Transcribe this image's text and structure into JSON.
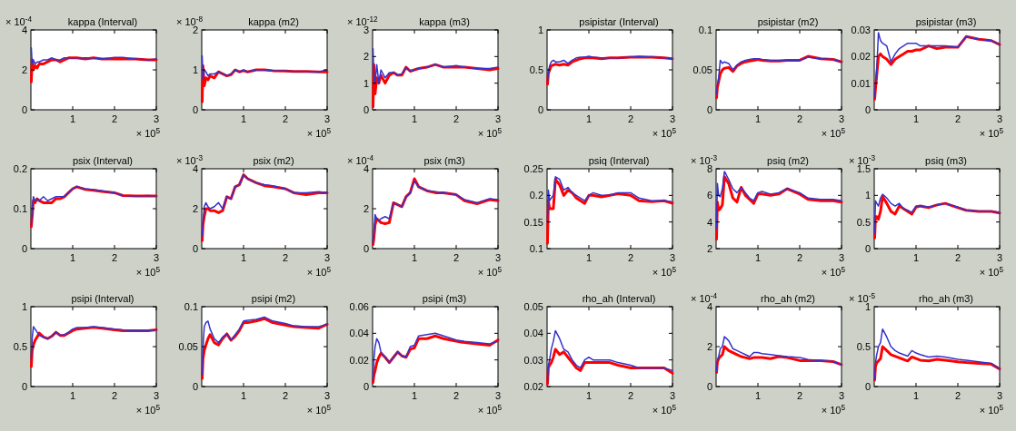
{
  "chart_data": [
    {
      "type": "line",
      "title": "kappa (Interval)",
      "annotations": [
        "× 10$^{-4}$"
      ],
      "xlabel": "× 10$^{5}$",
      "x": [
        0.01,
        0.03,
        0.06,
        0.1,
        0.15,
        0.2,
        0.3,
        0.4,
        0.5,
        0.6,
        0.7,
        0.8,
        0.9,
        1.0,
        1.1,
        1.3,
        1.5,
        1.7,
        2.0,
        2.2,
        2.5,
        2.8,
        3.0
      ],
      "xlim": [
        0,
        3
      ],
      "xticks": [
        1,
        2,
        3
      ],
      "ylim": [
        0,
        4
      ],
      "yticks": [
        0,
        2,
        4
      ],
      "series": [
        {
          "color": "#3333cc",
          "values": [
            3.1,
            2.3,
            2.5,
            2.3,
            2.4,
            2.4,
            2.5,
            2.5,
            2.6,
            2.5,
            2.5,
            2.6,
            2.6,
            2.6,
            2.6,
            2.6,
            2.6,
            2.55,
            2.62,
            2.62,
            2.55,
            2.5,
            2.55
          ]
        },
        {
          "color": "#ff0000",
          "values": [
            1.4,
            2.5,
            2.0,
            2.2,
            2.1,
            2.3,
            2.3,
            2.4,
            2.5,
            2.5,
            2.4,
            2.5,
            2.6,
            2.6,
            2.6,
            2.55,
            2.6,
            2.55,
            2.55,
            2.55,
            2.55,
            2.5,
            2.5
          ]
        }
      ]
    },
    {
      "type": "line",
      "title": "kappa (m2)",
      "annotations": [
        "× 10$^{-8}$"
      ],
      "xlabel": "× 10$^{5}$",
      "x": [
        0.01,
        0.03,
        0.06,
        0.1,
        0.15,
        0.2,
        0.3,
        0.4,
        0.5,
        0.6,
        0.7,
        0.8,
        0.9,
        1.0,
        1.1,
        1.3,
        1.5,
        1.7,
        2.0,
        2.2,
        2.5,
        2.8,
        3.0
      ],
      "xlim": [
        0,
        3
      ],
      "xticks": [
        1,
        2,
        3
      ],
      "ylim": [
        0,
        2
      ],
      "yticks": [
        0,
        1,
        2
      ],
      "series": [
        {
          "color": "#3333cc",
          "values": [
            1.35,
            0.75,
            1.0,
            0.95,
            0.85,
            0.9,
            0.9,
            0.95,
            0.9,
            0.85,
            0.9,
            1.0,
            0.95,
            1.0,
            0.95,
            1.0,
            1.0,
            0.98,
            0.97,
            0.96,
            0.96,
            0.95,
            1.0
          ]
        },
        {
          "color": "#ff0000",
          "values": [
            0.2,
            1.1,
            0.6,
            0.8,
            0.75,
            0.85,
            0.8,
            0.95,
            0.9,
            0.85,
            0.88,
            1.0,
            0.95,
            0.98,
            0.95,
            1.0,
            1.0,
            0.98,
            0.97,
            0.96,
            0.96,
            0.95,
            0.95
          ]
        }
      ]
    },
    {
      "type": "line",
      "title": "kappa (m3)",
      "annotations": [
        "× 10$^{-12}$"
      ],
      "xlabel": "× 10$^{5}$",
      "x": [
        0.01,
        0.03,
        0.06,
        0.1,
        0.15,
        0.2,
        0.3,
        0.4,
        0.5,
        0.6,
        0.7,
        0.8,
        0.9,
        1.0,
        1.1,
        1.3,
        1.5,
        1.7,
        2.0,
        2.2,
        2.5,
        2.8,
        3.0
      ],
      "xlim": [
        0,
        3
      ],
      "xticks": [
        1,
        2,
        3
      ],
      "ylim": [
        0,
        3
      ],
      "yticks": [
        0,
        1,
        2,
        3
      ],
      "series": [
        {
          "color": "#3333cc",
          "values": [
            2.3,
            1.3,
            1.0,
            1.7,
            1.0,
            1.5,
            1.2,
            1.4,
            1.4,
            1.3,
            1.35,
            1.6,
            1.45,
            1.5,
            1.55,
            1.6,
            1.7,
            1.6,
            1.66,
            1.6,
            1.55,
            1.55,
            1.6
          ]
        },
        {
          "color": "#ff0000",
          "values": [
            0.1,
            1.7,
            0.6,
            1.2,
            1.0,
            1.3,
            1.0,
            1.3,
            1.4,
            1.3,
            1.3,
            1.6,
            1.45,
            1.5,
            1.55,
            1.6,
            1.7,
            1.6,
            1.6,
            1.6,
            1.55,
            1.5,
            1.55
          ]
        }
      ]
    },
    {
      "type": "line",
      "title": "psipistar (Interval)",
      "xlabel": "× 10$^{5}$",
      "x": [
        0.01,
        0.03,
        0.06,
        0.1,
        0.15,
        0.2,
        0.3,
        0.4,
        0.5,
        0.6,
        0.7,
        0.8,
        0.9,
        1.0,
        1.1,
        1.3,
        1.5,
        1.7,
        2.0,
        2.2,
        2.5,
        2.8,
        3.0
      ],
      "xlim": [
        0,
        3
      ],
      "xticks": [
        1,
        2,
        3
      ],
      "ylim": [
        0,
        1
      ],
      "yticks": [
        0,
        0.5,
        1
      ],
      "series": [
        {
          "color": "#3333cc",
          "values": [
            0.35,
            0.48,
            0.55,
            0.6,
            0.62,
            0.6,
            0.6,
            0.62,
            0.58,
            0.62,
            0.65,
            0.66,
            0.66,
            0.67,
            0.66,
            0.65,
            0.65,
            0.65,
            0.66,
            0.67,
            0.66,
            0.65,
            0.64
          ]
        },
        {
          "color": "#ff0000",
          "values": [
            0.32,
            0.45,
            0.5,
            0.55,
            0.56,
            0.57,
            0.56,
            0.57,
            0.56,
            0.6,
            0.62,
            0.64,
            0.65,
            0.65,
            0.65,
            0.64,
            0.65,
            0.65,
            0.66,
            0.66,
            0.66,
            0.65,
            0.64
          ]
        }
      ]
    },
    {
      "type": "line",
      "title": "psipistar (m2)",
      "xlabel": "× 10$^{5}$",
      "x": [
        0.01,
        0.03,
        0.06,
        0.1,
        0.15,
        0.2,
        0.3,
        0.4,
        0.5,
        0.6,
        0.7,
        0.8,
        0.9,
        1.0,
        1.1,
        1.3,
        1.5,
        1.7,
        2.0,
        2.2,
        2.5,
        2.8,
        3.0
      ],
      "xlim": [
        0,
        3
      ],
      "xticks": [
        1,
        2,
        3
      ],
      "ylim": [
        0,
        0.1
      ],
      "yticks": [
        0,
        0.05,
        0.1
      ],
      "series": [
        {
          "color": "#3333cc",
          "values": [
            0.02,
            0.03,
            0.04,
            0.062,
            0.058,
            0.06,
            0.058,
            0.05,
            0.056,
            0.06,
            0.062,
            0.063,
            0.064,
            0.064,
            0.063,
            0.062,
            0.062,
            0.062,
            0.062,
            0.066,
            0.064,
            0.063,
            0.06
          ]
        },
        {
          "color": "#ff0000",
          "values": [
            0.015,
            0.028,
            0.035,
            0.045,
            0.05,
            0.052,
            0.053,
            0.048,
            0.055,
            0.058,
            0.06,
            0.061,
            0.062,
            0.063,
            0.062,
            0.061,
            0.061,
            0.062,
            0.062,
            0.067,
            0.064,
            0.063,
            0.06
          ]
        }
      ]
    },
    {
      "type": "line",
      "title": "psipistar (m3)",
      "xlabel": "× 10$^{5}$",
      "x": [
        0.01,
        0.03,
        0.06,
        0.1,
        0.15,
        0.2,
        0.3,
        0.4,
        0.5,
        0.6,
        0.7,
        0.8,
        0.9,
        1.0,
        1.1,
        1.3,
        1.5,
        1.7,
        2.0,
        2.2,
        2.5,
        2.8,
        3.0
      ],
      "xlim": [
        0,
        3
      ],
      "xticks": [
        1,
        2,
        3
      ],
      "ylim": [
        0,
        0.03
      ],
      "yticks": [
        0,
        0.01,
        0.02,
        0.03
      ],
      "series": [
        {
          "color": "#3333cc",
          "values": [
            0.005,
            0.01,
            0.015,
            0.029,
            0.026,
            0.025,
            0.024,
            0.018,
            0.021,
            0.023,
            0.024,
            0.025,
            0.025,
            0.025,
            0.024,
            0.024,
            0.024,
            0.024,
            0.0235,
            0.0275,
            0.0265,
            0.026,
            0.0245
          ]
        },
        {
          "color": "#ff0000",
          "values": [
            0.004,
            0.008,
            0.013,
            0.02,
            0.021,
            0.02,
            0.019,
            0.017,
            0.019,
            0.02,
            0.021,
            0.022,
            0.022,
            0.0225,
            0.0225,
            0.024,
            0.023,
            0.0235,
            0.0235,
            0.0275,
            0.0265,
            0.026,
            0.0245
          ]
        }
      ]
    },
    {
      "type": "line",
      "title": "psix (Interval)",
      "xlabel": "× 10$^{5}$",
      "x": [
        0.01,
        0.03,
        0.06,
        0.1,
        0.15,
        0.2,
        0.3,
        0.4,
        0.5,
        0.6,
        0.7,
        0.8,
        0.9,
        1.0,
        1.1,
        1.3,
        1.5,
        1.7,
        2.0,
        2.2,
        2.5,
        2.8,
        3.0
      ],
      "xlim": [
        0,
        3
      ],
      "xticks": [
        1,
        2,
        3
      ],
      "ylim": [
        0,
        0.2
      ],
      "yticks": [
        0,
        0.1,
        0.2
      ],
      "series": [
        {
          "color": "#3333cc",
          "values": [
            0.06,
            0.1,
            0.13,
            0.12,
            0.125,
            0.12,
            0.13,
            0.12,
            0.125,
            0.13,
            0.13,
            0.13,
            0.14,
            0.15,
            0.155,
            0.15,
            0.148,
            0.145,
            0.14,
            0.133,
            0.132,
            0.133,
            0.132
          ]
        },
        {
          "color": "#ff0000",
          "values": [
            0.055,
            0.08,
            0.12,
            0.115,
            0.125,
            0.12,
            0.115,
            0.115,
            0.115,
            0.125,
            0.125,
            0.13,
            0.14,
            0.15,
            0.155,
            0.148,
            0.146,
            0.143,
            0.14,
            0.133,
            0.132,
            0.132,
            0.132
          ]
        }
      ]
    },
    {
      "type": "line",
      "title": "psix (m2)",
      "annotations": [
        "× 10$^{-3}$"
      ],
      "xlabel": "× 10$^{5}$",
      "x": [
        0.01,
        0.03,
        0.06,
        0.1,
        0.15,
        0.2,
        0.3,
        0.4,
        0.5,
        0.6,
        0.7,
        0.8,
        0.9,
        1.0,
        1.1,
        1.3,
        1.5,
        1.7,
        2.0,
        2.2,
        2.5,
        2.8,
        3.0
      ],
      "xlim": [
        0,
        3
      ],
      "xticks": [
        1,
        2,
        3
      ],
      "ylim": [
        0,
        4
      ],
      "yticks": [
        0,
        2,
        4
      ],
      "series": [
        {
          "color": "#3333cc",
          "values": [
            0.6,
            1.3,
            2.1,
            2.3,
            2.1,
            2.0,
            2.1,
            2.3,
            2.0,
            2.6,
            2.5,
            3.1,
            3.2,
            3.7,
            3.5,
            3.3,
            3.2,
            3.15,
            3.0,
            2.8,
            2.8,
            2.85,
            2.8
          ]
        },
        {
          "color": "#ff0000",
          "values": [
            0.4,
            1.2,
            1.6,
            2.0,
            2.0,
            1.9,
            1.9,
            1.8,
            1.9,
            2.6,
            2.5,
            3.1,
            3.2,
            3.7,
            3.5,
            3.3,
            3.15,
            3.1,
            3.0,
            2.8,
            2.7,
            2.8,
            2.8
          ]
        }
      ]
    },
    {
      "type": "line",
      "title": "psix (m3)",
      "annotations": [
        "× 10$^{-4}$"
      ],
      "xlabel": "× 10$^{5}$",
      "x": [
        0.01,
        0.03,
        0.06,
        0.1,
        0.15,
        0.2,
        0.3,
        0.4,
        0.5,
        0.6,
        0.7,
        0.8,
        0.9,
        1.0,
        1.1,
        1.3,
        1.5,
        1.7,
        2.0,
        2.2,
        2.5,
        2.8,
        3.0
      ],
      "xlim": [
        0,
        3
      ],
      "xticks": [
        1,
        2,
        3
      ],
      "ylim": [
        0,
        4
      ],
      "yticks": [
        0,
        2,
        4
      ],
      "series": [
        {
          "color": "#3333cc",
          "values": [
            0.3,
            0.8,
            1.7,
            1.5,
            1.4,
            1.5,
            1.6,
            1.5,
            2.3,
            2.2,
            2.1,
            2.6,
            2.8,
            3.4,
            3.1,
            2.9,
            2.85,
            2.8,
            2.7,
            2.45,
            2.3,
            2.5,
            2.45
          ]
        },
        {
          "color": "#ff0000",
          "values": [
            0.2,
            0.5,
            1.2,
            1.5,
            1.4,
            1.3,
            1.25,
            1.3,
            2.3,
            2.2,
            2.1,
            2.6,
            2.8,
            3.5,
            3.1,
            2.9,
            2.8,
            2.8,
            2.7,
            2.4,
            2.25,
            2.45,
            2.4
          ]
        }
      ]
    },
    {
      "type": "line",
      "title": "psiq (Interval)",
      "xlabel": "× 10$^{5}$",
      "x": [
        0.01,
        0.03,
        0.06,
        0.1,
        0.15,
        0.2,
        0.3,
        0.4,
        0.5,
        0.6,
        0.7,
        0.8,
        0.9,
        1.0,
        1.1,
        1.3,
        1.5,
        1.7,
        2.0,
        2.2,
        2.5,
        2.8,
        3.0
      ],
      "xlim": [
        0,
        3
      ],
      "xticks": [
        1,
        2,
        3
      ],
      "ylim": [
        0.1,
        0.25
      ],
      "yticks": [
        0.1,
        0.15,
        0.2,
        0.25
      ],
      "series": [
        {
          "color": "#3333cc",
          "values": [
            0.15,
            0.21,
            0.19,
            0.195,
            0.2,
            0.235,
            0.23,
            0.21,
            0.215,
            0.205,
            0.2,
            0.195,
            0.19,
            0.2,
            0.205,
            0.2,
            0.2,
            0.205,
            0.205,
            0.195,
            0.19,
            0.19,
            0.188
          ]
        },
        {
          "color": "#ff0000",
          "values": [
            0.11,
            0.19,
            0.175,
            0.175,
            0.175,
            0.23,
            0.22,
            0.2,
            0.21,
            0.205,
            0.195,
            0.19,
            0.185,
            0.2,
            0.2,
            0.197,
            0.2,
            0.203,
            0.2,
            0.19,
            0.188,
            0.19,
            0.185
          ]
        }
      ]
    },
    {
      "type": "line",
      "title": "psiq (m2)",
      "annotations": [
        "× 10$^{-3}$"
      ],
      "xlabel": "× 10$^{5}$",
      "x": [
        0.01,
        0.03,
        0.06,
        0.1,
        0.15,
        0.2,
        0.3,
        0.4,
        0.5,
        0.6,
        0.7,
        0.8,
        0.9,
        1.0,
        1.1,
        1.3,
        1.5,
        1.7,
        2.0,
        2.2,
        2.5,
        2.8,
        3.0
      ],
      "xlim": [
        0,
        3
      ],
      "xticks": [
        1,
        2,
        3
      ],
      "ylim": [
        2,
        8
      ],
      "yticks": [
        2,
        4,
        6,
        8
      ],
      "series": [
        {
          "color": "#3333cc",
          "values": [
            3.5,
            6.9,
            6.0,
            5.9,
            6.5,
            7.8,
            7.2,
            6.5,
            6.2,
            6.6,
            6.2,
            5.8,
            5.6,
            6.2,
            6.3,
            6.1,
            6.2,
            6.5,
            6.2,
            5.8,
            5.7,
            5.7,
            5.6
          ]
        },
        {
          "color": "#ff0000",
          "values": [
            2.7,
            5.5,
            4.9,
            5.0,
            5.3,
            7.4,
            6.9,
            5.8,
            5.5,
            6.6,
            6.0,
            5.7,
            5.4,
            6.1,
            6.1,
            6.0,
            6.1,
            6.5,
            6.1,
            5.7,
            5.6,
            5.6,
            5.5
          ]
        }
      ]
    },
    {
      "type": "line",
      "title": "psiq (m3)",
      "annotations": [
        "× 10$^{-3}$"
      ],
      "xlabel": "× 10$^{5}$",
      "x": [
        0.01,
        0.03,
        0.06,
        0.1,
        0.15,
        0.2,
        0.3,
        0.4,
        0.5,
        0.6,
        0.7,
        0.8,
        0.9,
        1.0,
        1.1,
        1.3,
        1.5,
        1.7,
        2.0,
        2.2,
        2.5,
        2.8,
        3.0
      ],
      "xlim": [
        0,
        3
      ],
      "xticks": [
        1,
        2,
        3
      ],
      "ylim": [
        0,
        1.5
      ],
      "yticks": [
        0,
        0.5,
        1,
        1.5
      ],
      "series": [
        {
          "color": "#3333cc",
          "values": [
            0.3,
            0.9,
            0.85,
            0.8,
            0.95,
            1.02,
            0.95,
            0.85,
            0.8,
            0.85,
            0.75,
            0.72,
            0.68,
            0.8,
            0.8,
            0.78,
            0.82,
            0.85,
            0.78,
            0.72,
            0.7,
            0.7,
            0.68
          ]
        },
        {
          "color": "#ff0000",
          "values": [
            0.2,
            0.6,
            0.6,
            0.55,
            0.7,
            0.98,
            0.85,
            0.7,
            0.65,
            0.8,
            0.75,
            0.7,
            0.65,
            0.78,
            0.8,
            0.77,
            0.82,
            0.85,
            0.77,
            0.72,
            0.7,
            0.7,
            0.67
          ]
        }
      ]
    },
    {
      "type": "line",
      "title": "psipi (Interval)",
      "xlabel": "× 10$^{5}$",
      "x": [
        0.01,
        0.03,
        0.06,
        0.1,
        0.15,
        0.2,
        0.3,
        0.4,
        0.5,
        0.6,
        0.7,
        0.8,
        0.9,
        1.0,
        1.1,
        1.3,
        1.5,
        1.7,
        2.0,
        2.2,
        2.5,
        2.8,
        3.0
      ],
      "xlim": [
        0,
        3
      ],
      "xticks": [
        1,
        2,
        3
      ],
      "ylim": [
        0,
        1
      ],
      "yticks": [
        0,
        0.5,
        1
      ],
      "series": [
        {
          "color": "#3333cc",
          "values": [
            0.35,
            0.6,
            0.75,
            0.72,
            0.68,
            0.64,
            0.62,
            0.6,
            0.63,
            0.68,
            0.64,
            0.65,
            0.68,
            0.72,
            0.74,
            0.74,
            0.75,
            0.74,
            0.72,
            0.71,
            0.7,
            0.7,
            0.71
          ]
        },
        {
          "color": "#ff0000",
          "values": [
            0.25,
            0.45,
            0.52,
            0.58,
            0.62,
            0.67,
            0.62,
            0.6,
            0.63,
            0.68,
            0.64,
            0.64,
            0.67,
            0.7,
            0.72,
            0.73,
            0.74,
            0.73,
            0.71,
            0.7,
            0.7,
            0.7,
            0.71
          ]
        }
      ]
    },
    {
      "type": "line",
      "title": "psipi (m2)",
      "xlabel": "× 10$^{5}$",
      "x": [
        0.01,
        0.03,
        0.06,
        0.1,
        0.15,
        0.2,
        0.3,
        0.4,
        0.5,
        0.6,
        0.7,
        0.8,
        0.9,
        1.0,
        1.1,
        1.3,
        1.5,
        1.7,
        2.0,
        2.2,
        2.5,
        2.8,
        3.0
      ],
      "xlim": [
        0,
        3
      ],
      "xticks": [
        1,
        2,
        3
      ],
      "ylim": [
        0,
        0.1
      ],
      "yticks": [
        0,
        0.05,
        0.1
      ],
      "series": [
        {
          "color": "#3333cc",
          "values": [
            0.015,
            0.05,
            0.075,
            0.08,
            0.082,
            0.072,
            0.06,
            0.055,
            0.062,
            0.066,
            0.058,
            0.065,
            0.072,
            0.082,
            0.083,
            0.084,
            0.087,
            0.082,
            0.079,
            0.076,
            0.075,
            0.075,
            0.078
          ]
        },
        {
          "color": "#ff0000",
          "values": [
            0.01,
            0.035,
            0.045,
            0.052,
            0.06,
            0.065,
            0.055,
            0.052,
            0.06,
            0.066,
            0.058,
            0.063,
            0.07,
            0.08,
            0.08,
            0.082,
            0.085,
            0.08,
            0.077,
            0.075,
            0.074,
            0.073,
            0.078
          ]
        }
      ]
    },
    {
      "type": "line",
      "title": "psipi (m3)",
      "xlabel": "× 10$^{5}$",
      "x": [
        0.01,
        0.03,
        0.06,
        0.1,
        0.15,
        0.2,
        0.3,
        0.4,
        0.5,
        0.6,
        0.7,
        0.8,
        0.9,
        1.0,
        1.1,
        1.3,
        1.5,
        1.7,
        2.0,
        2.2,
        2.5,
        2.8,
        3.0
      ],
      "xlim": [
        0,
        3
      ],
      "xticks": [
        1,
        2,
        3
      ],
      "ylim": [
        0,
        0.06
      ],
      "yticks": [
        0,
        0.02,
        0.04,
        0.06
      ],
      "series": [
        {
          "color": "#3333cc",
          "values": [
            0.005,
            0.02,
            0.03,
            0.036,
            0.033,
            0.026,
            0.022,
            0.018,
            0.022,
            0.026,
            0.023,
            0.022,
            0.03,
            0.031,
            0.038,
            0.039,
            0.04,
            0.038,
            0.035,
            0.034,
            0.033,
            0.032,
            0.034
          ]
        },
        {
          "color": "#ff0000",
          "values": [
            0.003,
            0.008,
            0.012,
            0.018,
            0.022,
            0.025,
            0.022,
            0.018,
            0.022,
            0.026,
            0.023,
            0.022,
            0.028,
            0.029,
            0.036,
            0.036,
            0.038,
            0.036,
            0.034,
            0.033,
            0.032,
            0.031,
            0.035
          ]
        }
      ]
    },
    {
      "type": "line",
      "title": "rho_ah (Interval)",
      "xlabel": "× 10$^{5}$",
      "x": [
        0.01,
        0.03,
        0.06,
        0.1,
        0.15,
        0.2,
        0.3,
        0.4,
        0.5,
        0.6,
        0.7,
        0.8,
        0.9,
        1.0,
        1.1,
        1.3,
        1.5,
        1.7,
        2.0,
        2.2,
        2.5,
        2.8,
        3.0
      ],
      "xlim": [
        0,
        3
      ],
      "xticks": [
        1,
        2,
        3
      ],
      "ylim": [
        0.02,
        0.05
      ],
      "yticks": [
        0.02,
        0.03,
        0.04,
        0.05
      ],
      "series": [
        {
          "color": "#3333cc",
          "values": [
            0.022,
            0.028,
            0.03,
            0.034,
            0.037,
            0.041,
            0.038,
            0.034,
            0.033,
            0.03,
            0.028,
            0.027,
            0.03,
            0.031,
            0.03,
            0.03,
            0.03,
            0.029,
            0.028,
            0.027,
            0.027,
            0.027,
            0.026
          ]
        },
        {
          "color": "#ff0000",
          "values": [
            0.021,
            0.027,
            0.028,
            0.029,
            0.031,
            0.034,
            0.032,
            0.033,
            0.031,
            0.029,
            0.027,
            0.026,
            0.029,
            0.029,
            0.029,
            0.029,
            0.029,
            0.028,
            0.027,
            0.027,
            0.027,
            0.027,
            0.025
          ]
        }
      ]
    },
    {
      "type": "line",
      "title": "rho_ah (m2)",
      "annotations": [
        "× 10$^{-4}$"
      ],
      "xlabel": "× 10$^{5}$",
      "x": [
        0.01,
        0.03,
        0.06,
        0.1,
        0.15,
        0.2,
        0.3,
        0.4,
        0.5,
        0.6,
        0.7,
        0.8,
        0.9,
        1.0,
        1.1,
        1.3,
        1.5,
        1.7,
        2.0,
        2.2,
        2.5,
        2.8,
        3.0
      ],
      "xlim": [
        0,
        3
      ],
      "xticks": [
        1,
        2,
        3
      ],
      "ylim": [
        0,
        4
      ],
      "yticks": [
        0,
        2,
        4
      ],
      "series": [
        {
          "color": "#3333cc",
          "values": [
            0.8,
            1.3,
            1.5,
            1.9,
            2.0,
            2.5,
            2.3,
            1.9,
            1.8,
            1.7,
            1.6,
            1.5,
            1.7,
            1.7,
            1.65,
            1.6,
            1.55,
            1.5,
            1.45,
            1.35,
            1.3,
            1.25,
            1.1
          ]
        },
        {
          "color": "#ff0000",
          "values": [
            0.7,
            1.2,
            1.4,
            1.5,
            1.6,
            2.0,
            1.8,
            1.7,
            1.6,
            1.5,
            1.45,
            1.4,
            1.45,
            1.45,
            1.45,
            1.4,
            1.5,
            1.45,
            1.3,
            1.3,
            1.3,
            1.25,
            1.1
          ]
        }
      ]
    },
    {
      "type": "line",
      "title": "rho_ah (m3)",
      "annotations": [
        "× 10$^{-5}$"
      ],
      "xlabel": "× 10$^{5}$",
      "x": [
        0.01,
        0.03,
        0.06,
        0.1,
        0.15,
        0.2,
        0.3,
        0.4,
        0.5,
        0.6,
        0.7,
        0.8,
        0.9,
        1.0,
        1.1,
        1.3,
        1.5,
        1.7,
        2.0,
        2.2,
        2.5,
        2.8,
        3.0
      ],
      "xlim": [
        0,
        3
      ],
      "xticks": [
        1,
        2,
        3
      ],
      "ylim": [
        0,
        1
      ],
      "yticks": [
        0,
        0.5,
        1
      ],
      "series": [
        {
          "color": "#3333cc",
          "values": [
            0.1,
            0.3,
            0.4,
            0.5,
            0.55,
            0.72,
            0.62,
            0.5,
            0.45,
            0.42,
            0.4,
            0.38,
            0.45,
            0.42,
            0.4,
            0.37,
            0.38,
            0.37,
            0.34,
            0.33,
            0.31,
            0.29,
            0.22
          ]
        },
        {
          "color": "#ff0000",
          "values": [
            0.08,
            0.25,
            0.3,
            0.32,
            0.35,
            0.5,
            0.45,
            0.4,
            0.38,
            0.36,
            0.34,
            0.32,
            0.37,
            0.35,
            0.33,
            0.32,
            0.34,
            0.33,
            0.31,
            0.3,
            0.29,
            0.28,
            0.22
          ]
        }
      ]
    }
  ]
}
